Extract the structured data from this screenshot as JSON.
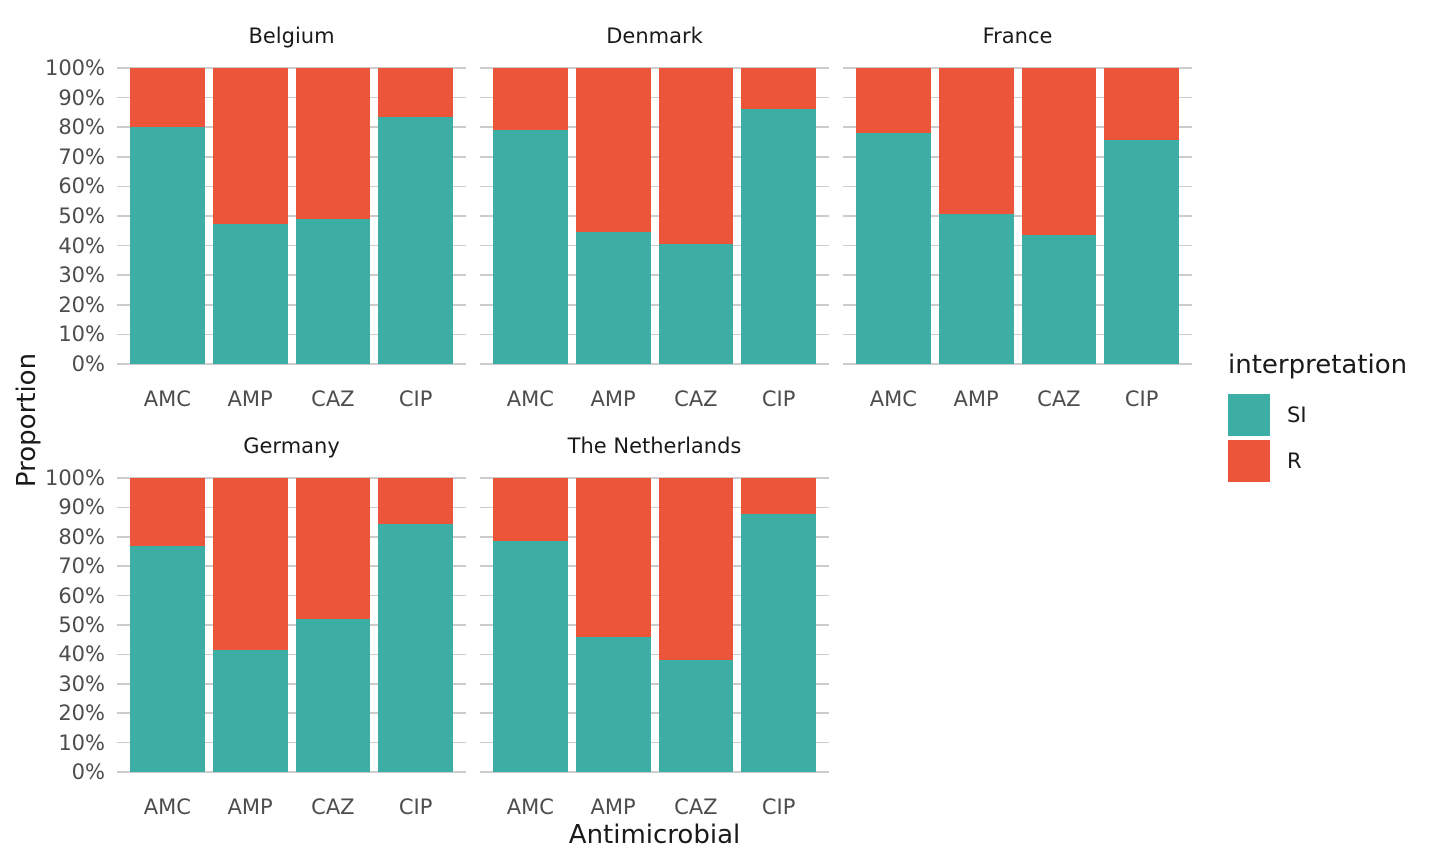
{
  "chart_data": {
    "type": "bar",
    "subtype": "stacked-100-percent-faceted",
    "title": "",
    "xlabel": "Antimicrobial",
    "ylabel": "Proportion",
    "ylim": [
      0,
      100
    ],
    "value_unit": "%",
    "grid": "horizontal major lines every 10%",
    "ytick_labels": [
      "100%",
      "90%",
      "80%",
      "70%",
      "60%",
      "50%",
      "40%",
      "30%",
      "20%",
      "10%",
      "0%"
    ],
    "categories": [
      "AMC",
      "AMP",
      "CAZ",
      "CIP"
    ],
    "series_names": [
      "SI",
      "R"
    ],
    "facets": [
      {
        "title": "Belgium",
        "series": {
          "SI": [
            80.0,
            47.4,
            48.9,
            83.4
          ],
          "R": [
            20.0,
            52.6,
            51.1,
            16.6
          ]
        }
      },
      {
        "title": "Denmark",
        "series": {
          "SI": [
            79.2,
            44.7,
            40.6,
            86.2
          ],
          "R": [
            20.8,
            55.3,
            59.4,
            13.8
          ]
        }
      },
      {
        "title": "France",
        "series": {
          "SI": [
            78.1,
            50.7,
            43.5,
            75.7
          ],
          "R": [
            21.9,
            49.3,
            56.5,
            24.3
          ]
        }
      },
      {
        "title": "Germany",
        "series": {
          "SI": [
            76.8,
            41.5,
            52.2,
            84.3
          ],
          "R": [
            23.2,
            58.5,
            47.8,
            15.7
          ]
        }
      },
      {
        "title": "The Netherlands",
        "series": {
          "SI": [
            78.7,
            45.9,
            38.2,
            87.9
          ],
          "R": [
            21.3,
            54.1,
            61.8,
            12.1
          ]
        }
      }
    ],
    "legend": {
      "title": "interpretation",
      "position": "right",
      "entries": [
        {
          "label": "SI",
          "color": "#3CAEA3"
        },
        {
          "label": "R",
          "color": "#ED553B"
        }
      ]
    },
    "colors": {
      "SI": "#3CAEA3",
      "R": "#ED553B",
      "gridline": "#CCCCCC",
      "tick_text": "#4D4D4D",
      "title_text": "#1A1A1A",
      "background": "#FFFFFF"
    }
  }
}
